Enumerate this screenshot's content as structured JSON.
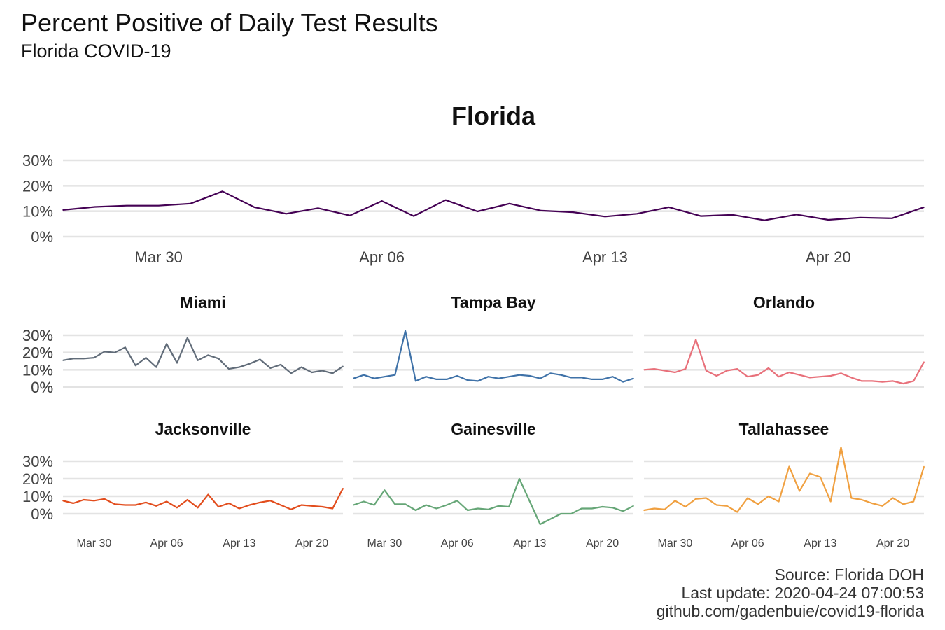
{
  "title": "Percent Positive of Daily Test Results",
  "subtitle": "Florida COVID-19",
  "caption": [
    "Source: Florida DOH",
    "Last update: 2020-04-24 07:00:53",
    "github.com/gadenbuie/covid19-florida"
  ],
  "chart_data": [
    {
      "type": "line",
      "panel": "Florida",
      "x": [
        "2020-03-27",
        "2020-03-28",
        "2020-03-29",
        "2020-03-30",
        "2020-03-31",
        "2020-04-01",
        "2020-04-02",
        "2020-04-03",
        "2020-04-04",
        "2020-04-05",
        "2020-04-06",
        "2020-04-07",
        "2020-04-08",
        "2020-04-09",
        "2020-04-10",
        "2020-04-11",
        "2020-04-12",
        "2020-04-13",
        "2020-04-14",
        "2020-04-15",
        "2020-04-16",
        "2020-04-17",
        "2020-04-18",
        "2020-04-19",
        "2020-04-20",
        "2020-04-21",
        "2020-04-22",
        "2020-04-23"
      ],
      "y": [
        10.5,
        11.7,
        12.2,
        12.2,
        13.0,
        17.8,
        11.6,
        9.0,
        11.2,
        8.3,
        14.0,
        8.1,
        14.4,
        9.9,
        13.0,
        10.2,
        9.6,
        7.9,
        9.0,
        11.6,
        8.1,
        8.6,
        6.4,
        8.7,
        6.6,
        7.5,
        7.2,
        11.6
      ],
      "color": "#440154",
      "ylim": [
        0,
        30
      ],
      "yticks": [
        "0%",
        "10%",
        "20%",
        "30%"
      ],
      "xticks": [
        {
          "date": "2020-03-30",
          "label": "Mar 30"
        },
        {
          "date": "2020-04-06",
          "label": "Apr 06"
        },
        {
          "date": "2020-04-13",
          "label": "Apr 13"
        },
        {
          "date": "2020-04-20",
          "label": "Apr 20"
        }
      ]
    },
    {
      "type": "line",
      "panel": "Miami",
      "x": [
        "2020-03-27",
        "2020-03-28",
        "2020-03-29",
        "2020-03-30",
        "2020-03-31",
        "2020-04-01",
        "2020-04-02",
        "2020-04-03",
        "2020-04-04",
        "2020-04-05",
        "2020-04-06",
        "2020-04-07",
        "2020-04-08",
        "2020-04-09",
        "2020-04-10",
        "2020-04-11",
        "2020-04-12",
        "2020-04-13",
        "2020-04-14",
        "2020-04-15",
        "2020-04-16",
        "2020-04-17",
        "2020-04-18",
        "2020-04-19",
        "2020-04-20",
        "2020-04-21",
        "2020-04-22",
        "2020-04-23"
      ],
      "y": [
        15.5,
        16.5,
        16.5,
        17.0,
        20.5,
        20.0,
        23.0,
        12.5,
        17.0,
        11.5,
        25.0,
        14.0,
        28.5,
        15.5,
        18.5,
        16.5,
        10.5,
        11.5,
        13.5,
        16.0,
        11.0,
        13.0,
        8.0,
        11.5,
        8.5,
        9.5,
        8.0,
        12.0
      ],
      "color": "#616c79",
      "ylim": [
        0,
        30
      ],
      "yticks": [
        "0%",
        "10%",
        "20%",
        "30%"
      ],
      "xticks": []
    },
    {
      "type": "line",
      "panel": "Tampa Bay",
      "x": [
        "2020-03-27",
        "2020-03-28",
        "2020-03-29",
        "2020-03-30",
        "2020-03-31",
        "2020-04-01",
        "2020-04-02",
        "2020-04-03",
        "2020-04-04",
        "2020-04-05",
        "2020-04-06",
        "2020-04-07",
        "2020-04-08",
        "2020-04-09",
        "2020-04-10",
        "2020-04-11",
        "2020-04-12",
        "2020-04-13",
        "2020-04-14",
        "2020-04-15",
        "2020-04-16",
        "2020-04-17",
        "2020-04-18",
        "2020-04-19",
        "2020-04-20",
        "2020-04-21",
        "2020-04-22",
        "2020-04-23"
      ],
      "y": [
        5.0,
        7.0,
        5.0,
        6.0,
        7.0,
        32.5,
        3.5,
        6.0,
        4.5,
        4.5,
        6.5,
        4.0,
        3.5,
        6.0,
        5.0,
        6.0,
        7.0,
        6.5,
        5.0,
        8.0,
        7.0,
        5.5,
        5.5,
        4.5,
        4.5,
        6.0,
        3.0,
        5.0
      ],
      "color": "#3f72a8",
      "ylim": [
        0,
        30
      ],
      "yticks": [
        "0%",
        "10%",
        "20%",
        "30%"
      ],
      "xticks": []
    },
    {
      "type": "line",
      "panel": "Orlando",
      "x": [
        "2020-03-27",
        "2020-03-28",
        "2020-03-29",
        "2020-03-30",
        "2020-03-31",
        "2020-04-01",
        "2020-04-02",
        "2020-04-03",
        "2020-04-04",
        "2020-04-05",
        "2020-04-06",
        "2020-04-07",
        "2020-04-08",
        "2020-04-09",
        "2020-04-10",
        "2020-04-11",
        "2020-04-12",
        "2020-04-13",
        "2020-04-14",
        "2020-04-15",
        "2020-04-16",
        "2020-04-17",
        "2020-04-18",
        "2020-04-19",
        "2020-04-20",
        "2020-04-21",
        "2020-04-22",
        "2020-04-23"
      ],
      "y": [
        10.0,
        10.5,
        9.5,
        8.5,
        10.5,
        27.5,
        9.5,
        6.5,
        9.5,
        10.5,
        6.0,
        7.0,
        11.0,
        6.0,
        8.5,
        7.0,
        5.5,
        6.0,
        6.5,
        8.0,
        5.5,
        3.5,
        3.5,
        3.0,
        3.5,
        2.0,
        3.5,
        14.5
      ],
      "color": "#e8707a",
      "ylim": [
        0,
        30
      ],
      "yticks": [],
      "xticks": []
    },
    {
      "type": "line",
      "panel": "Jacksonville",
      "x": [
        "2020-03-27",
        "2020-03-28",
        "2020-03-29",
        "2020-03-30",
        "2020-03-31",
        "2020-04-01",
        "2020-04-02",
        "2020-04-03",
        "2020-04-04",
        "2020-04-05",
        "2020-04-06",
        "2020-04-07",
        "2020-04-08",
        "2020-04-09",
        "2020-04-10",
        "2020-04-11",
        "2020-04-12",
        "2020-04-13",
        "2020-04-14",
        "2020-04-15",
        "2020-04-16",
        "2020-04-17",
        "2020-04-18",
        "2020-04-19",
        "2020-04-20",
        "2020-04-21",
        "2020-04-22",
        "2020-04-23"
      ],
      "y": [
        7.5,
        6.0,
        8.0,
        7.5,
        8.5,
        5.5,
        5.0,
        5.0,
        6.5,
        4.5,
        7.0,
        3.5,
        8.0,
        3.5,
        11.0,
        4.0,
        6.0,
        3.0,
        5.0,
        6.5,
        7.5,
        5.0,
        2.5,
        5.0,
        4.5,
        4.0,
        3.0,
        14.5
      ],
      "color": "#e24d1d",
      "ylim": [
        0,
        30
      ],
      "yticks": [
        "0%",
        "10%",
        "20%",
        "30%"
      ],
      "xticks": [
        {
          "date": "2020-03-30",
          "label": "Mar 30"
        },
        {
          "date": "2020-04-06",
          "label": "Apr 06"
        },
        {
          "date": "2020-04-13",
          "label": "Apr 13"
        },
        {
          "date": "2020-04-20",
          "label": "Apr 20"
        }
      ]
    },
    {
      "type": "line",
      "panel": "Gainesville",
      "x": [
        "2020-03-27",
        "2020-03-28",
        "2020-03-29",
        "2020-03-30",
        "2020-03-31",
        "2020-04-01",
        "2020-04-02",
        "2020-04-03",
        "2020-04-04",
        "2020-04-05",
        "2020-04-06",
        "2020-04-07",
        "2020-04-08",
        "2020-04-09",
        "2020-04-10",
        "2020-04-11",
        "2020-04-12",
        "2020-04-13",
        "2020-04-14",
        "2020-04-15",
        "2020-04-16",
        "2020-04-17",
        "2020-04-18",
        "2020-04-19",
        "2020-04-20",
        "2020-04-21",
        "2020-04-22",
        "2020-04-23"
      ],
      "y": [
        5.0,
        7.0,
        5.0,
        13.5,
        5.5,
        5.5,
        2.0,
        5.0,
        3.0,
        5.0,
        7.5,
        2.0,
        3.0,
        2.5,
        4.5,
        4.0,
        20.0,
        7.0,
        -6.0,
        -3.0,
        0.0,
        0.0,
        3.0,
        3.0,
        4.0,
        3.5,
        1.5,
        4.5
      ],
      "color": "#66a677",
      "ylim": [
        0,
        30
      ],
      "yticks": [],
      "xticks": [
        {
          "date": "2020-03-30",
          "label": "Mar 30"
        },
        {
          "date": "2020-04-06",
          "label": "Apr 06"
        },
        {
          "date": "2020-04-13",
          "label": "Apr 13"
        },
        {
          "date": "2020-04-20",
          "label": "Apr 20"
        }
      ]
    },
    {
      "type": "line",
      "panel": "Tallahassee",
      "x": [
        "2020-03-27",
        "2020-03-28",
        "2020-03-29",
        "2020-03-30",
        "2020-03-31",
        "2020-04-01",
        "2020-04-02",
        "2020-04-03",
        "2020-04-04",
        "2020-04-05",
        "2020-04-06",
        "2020-04-07",
        "2020-04-08",
        "2020-04-09",
        "2020-04-10",
        "2020-04-11",
        "2020-04-12",
        "2020-04-13",
        "2020-04-14",
        "2020-04-15",
        "2020-04-16",
        "2020-04-17",
        "2020-04-18",
        "2020-04-19",
        "2020-04-20",
        "2020-04-21",
        "2020-04-22",
        "2020-04-23"
      ],
      "y": [
        2.0,
        3.0,
        2.5,
        7.5,
        4.0,
        8.5,
        9.0,
        5.0,
        4.5,
        1.0,
        9.0,
        5.5,
        10.0,
        7.0,
        27.0,
        13.0,
        23.0,
        21.0,
        7.0,
        38.0,
        9.0,
        8.0,
        6.0,
        4.5,
        9.0,
        5.5,
        7.0,
        27.0
      ],
      "color": "#f0a040",
      "ylim": [
        0,
        30
      ],
      "yticks": [],
      "xticks": [
        {
          "date": "2020-03-30",
          "label": "Mar 30"
        },
        {
          "date": "2020-04-06",
          "label": "Apr 06"
        },
        {
          "date": "2020-04-13",
          "label": "Apr 13"
        },
        {
          "date": "2020-04-20",
          "label": "Apr 20"
        }
      ]
    }
  ]
}
